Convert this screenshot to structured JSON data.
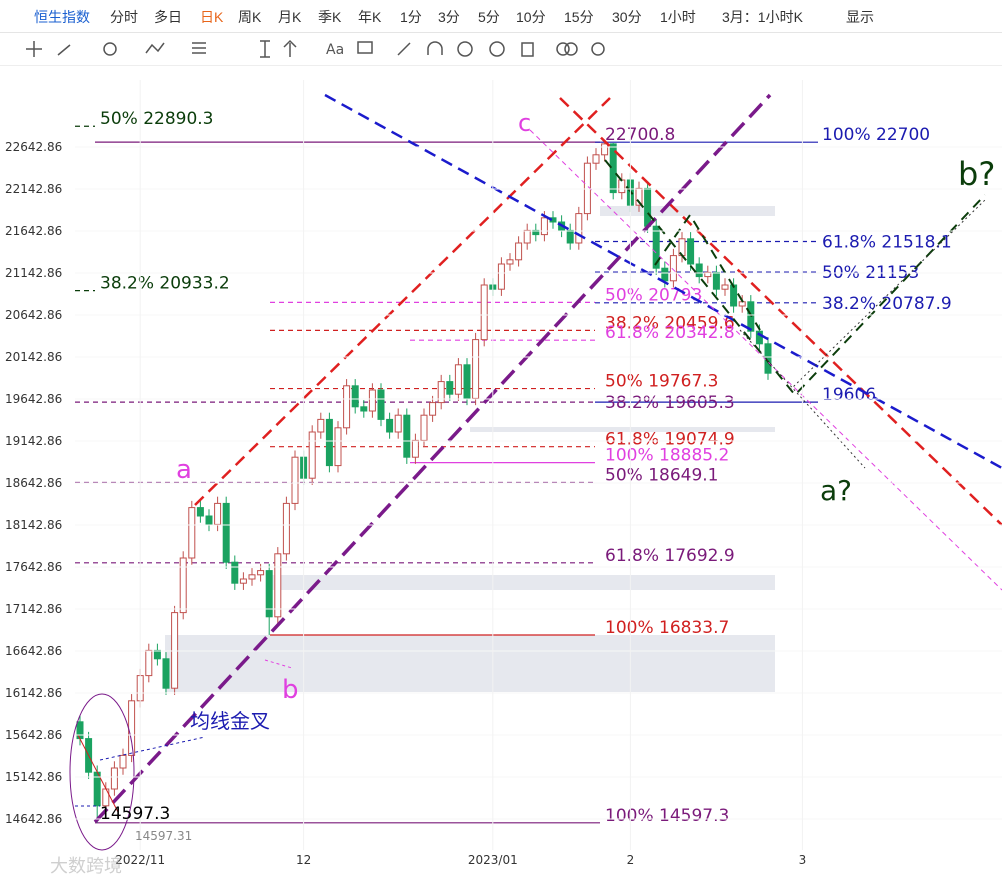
{
  "toolbar": {
    "items": [
      {
        "label": "恒生指数",
        "active": false
      },
      {
        "label": "分时",
        "active": false
      },
      {
        "label": "多日",
        "active": false
      },
      {
        "label": "日K",
        "active": true
      },
      {
        "label": "周K",
        "active": false
      },
      {
        "label": "月K",
        "active": false
      },
      {
        "label": "季K",
        "active": false
      },
      {
        "label": "年K",
        "active": false
      },
      {
        "label": "1分",
        "active": false
      },
      {
        "label": "3分",
        "active": false
      },
      {
        "label": "5分",
        "active": false
      },
      {
        "label": "10分",
        "active": false
      },
      {
        "label": "15分",
        "active": false
      },
      {
        "label": "30分",
        "active": false
      },
      {
        "label": "1小时",
        "active": false
      },
      {
        "label": "3月：1小时K",
        "active": false
      },
      {
        "label": "显示",
        "active": false
      }
    ]
  },
  "chart_data": {
    "type": "candlestick",
    "categories": [
      null,
      null,
      null,
      null,
      null,
      null,
      null,
      "2022/11",
      null,
      null,
      null,
      null,
      null,
      null,
      null,
      null,
      null,
      null,
      null,
      null,
      null,
      null,
      null,
      null,
      null,
      null,
      "12",
      null,
      null,
      null,
      null,
      null,
      null,
      null,
      null,
      null,
      null,
      null,
      null,
      null,
      null,
      null,
      null,
      null,
      null,
      null,
      null,
      null,
      "2023/01",
      null,
      null,
      null,
      null,
      null,
      null,
      null,
      null,
      null,
      null,
      null,
      null,
      null,
      null,
      null,
      "2",
      null,
      null,
      null,
      null,
      null,
      null,
      null,
      null,
      null,
      null,
      null,
      null,
      null,
      null,
      null,
      null,
      null,
      null,
      null,
      "3"
    ],
    "open": [
      15800,
      15600,
      15200,
      14800,
      15000,
      15250,
      15400,
      16050,
      16350,
      16650,
      16550,
      16200,
      17100,
      17750,
      18350,
      18250,
      18150,
      18400,
      17700,
      17450,
      17500,
      17550,
      17600,
      17050,
      17800,
      18400,
      18950,
      18700,
      19250,
      19400,
      18850,
      19300,
      19800,
      19550,
      19500,
      19750,
      19400,
      19250,
      19450,
      18950,
      19150,
      19450,
      19600,
      19850,
      19700,
      20050,
      19650,
      20350,
      21000,
      20950,
      21250,
      21300,
      21500,
      21650,
      21600,
      21800,
      21750,
      21650,
      21500,
      21850,
      22450,
      22550,
      22680,
      22100,
      22250,
      21950,
      22150,
      21700,
      21200,
      21050,
      21350,
      21550,
      21250,
      21100,
      21150,
      20950,
      21000,
      20750,
      20800,
      20450,
      20300,
      null,
      null,
      null,
      null
    ],
    "high": [
      15880,
      15680,
      15280,
      15080,
      15330,
      15480,
      16130,
      16430,
      16730,
      16730,
      16630,
      17180,
      17830,
      18430,
      18430,
      18330,
      18480,
      18480,
      17780,
      17580,
      17630,
      17680,
      17680,
      17880,
      18480,
      19030,
      19030,
      19330,
      19480,
      19480,
      19380,
      19880,
      19880,
      19630,
      19830,
      19830,
      19480,
      19530,
      19530,
      19230,
      19530,
      19680,
      19930,
      19930,
      20130,
      20130,
      20430,
      21080,
      21080,
      21330,
      21380,
      21580,
      21730,
      21730,
      21880,
      21880,
      21830,
      21730,
      21930,
      22530,
      22630,
      22701,
      22690,
      22330,
      22330,
      22230,
      22230,
      21780,
      21280,
      21430,
      21630,
      21630,
      21330,
      21230,
      21230,
      21080,
      21080,
      20880,
      20880,
      20530,
      20380,
      null,
      null,
      null,
      null
    ],
    "low": [
      15520,
      15120,
      14597,
      14720,
      14920,
      15170,
      15320,
      15970,
      16270,
      16470,
      16120,
      16120,
      17020,
      17670,
      18170,
      18070,
      18070,
      17620,
      17370,
      17370,
      17420,
      17470,
      16834,
      16970,
      17720,
      18320,
      18620,
      18620,
      19170,
      18770,
      18770,
      19220,
      19470,
      19420,
      19420,
      19320,
      19170,
      19170,
      18870,
      18870,
      19070,
      19370,
      19520,
      19620,
      19620,
      19570,
      19570,
      20270,
      20870,
      20870,
      21170,
      21220,
      21420,
      21520,
      21520,
      21670,
      21570,
      21420,
      21420,
      21770,
      22370,
      22470,
      22020,
      22020,
      21870,
      21870,
      21620,
      21120,
      20970,
      20970,
      21270,
      21170,
      21020,
      21020,
      20870,
      20870,
      20670,
      20670,
      20370,
      20220,
      19870,
      null,
      null,
      null,
      null
    ],
    "close": [
      15600,
      15200,
      14800,
      15000,
      15250,
      15400,
      16050,
      16350,
      16650,
      16550,
      16200,
      17100,
      17750,
      18350,
      18250,
      18150,
      18400,
      17700,
      17450,
      17500,
      17550,
      17600,
      17050,
      17800,
      18400,
      18950,
      18700,
      19250,
      19400,
      18850,
      19300,
      19800,
      19550,
      19500,
      19750,
      19400,
      19250,
      19450,
      18950,
      19150,
      19450,
      19600,
      19850,
      19700,
      20050,
      19650,
      20350,
      21000,
      20950,
      21250,
      21300,
      21500,
      21650,
      21600,
      21800,
      21750,
      21650,
      21500,
      21850,
      22450,
      22550,
      22680,
      22100,
      22250,
      21950,
      22150,
      21700,
      21200,
      21050,
      21350,
      21550,
      21250,
      21100,
      21150,
      20950,
      21000,
      20750,
      20800,
      20450,
      20300,
      19950,
      null,
      null,
      null,
      null
    ],
    "up_color": "#c0504d",
    "down_color": "#1aa260",
    "ylim": [
      14273.8,
      23440.5
    ],
    "yticks": [
      14642.86,
      15142.86,
      15642.86,
      16142.86,
      16642.86,
      17142.86,
      17642.86,
      18142.86,
      18642.86,
      19142.86,
      19642.86,
      20142.86,
      20642.86,
      21142.86,
      21642.86,
      22142.86,
      22642.86
    ],
    "grid": true,
    "levels": [
      {
        "label": "50% 22890.3",
        "value": 22890.3,
        "color": "#0b3d0b",
        "style": "dashed"
      },
      {
        "label": "38.2% 20933.2",
        "value": 20933.2,
        "color": "#0b3d0b",
        "style": "dashed"
      },
      {
        "label": "22700.8",
        "value": 22700.8,
        "color": "#7a1a7a",
        "style": "solid"
      },
      {
        "label": "100% 22700",
        "value": 22700,
        "color": "#1b1bb0",
        "style": "solid"
      },
      {
        "label": "61.8% 21518.1",
        "value": 21518.1,
        "color": "#1b1bb0",
        "style": "dashed"
      },
      {
        "label": "50% 21153",
        "value": 21153,
        "color": "#1b1bb0",
        "style": "dashed"
      },
      {
        "label": "38.2% 20787.9",
        "value": 20787.9,
        "color": "#1b1bb0",
        "style": "dashed"
      },
      {
        "label": "19606",
        "value": 19606,
        "color": "#1b1bb0",
        "style": "solid"
      },
      {
        "label": "50% 20793",
        "value": 20793,
        "color": "#e040e0",
        "style": "dashed"
      },
      {
        "label": "38.2% 20459.6",
        "value": 20459.6,
        "color": "#d02020",
        "style": "dashed"
      },
      {
        "label": "61.8% 20342.8",
        "value": 20342.8,
        "color": "#e040e0",
        "style": "dashed"
      },
      {
        "label": "50% 19767.3",
        "value": 19767.3,
        "color": "#d02020",
        "style": "dashed"
      },
      {
        "label": "38.2% 19605.3",
        "value": 19605.3,
        "color": "#7a1a7a",
        "style": "dashed"
      },
      {
        "label": "61.8% 19074.9",
        "value": 19074.9,
        "color": "#d02020",
        "style": "dashed"
      },
      {
        "label": "100% 18885.2",
        "value": 18885.2,
        "color": "#e040e0",
        "style": "solid"
      },
      {
        "label": "50% 18649.1",
        "value": 18649.1,
        "color": "#7a1a7a",
        "style": "dashed"
      },
      {
        "label": "61.8% 17692.9",
        "value": 17692.9,
        "color": "#7a1a7a",
        "style": "dashed"
      },
      {
        "label": "100% 16833.7",
        "value": 16833.7,
        "color": "#d02020",
        "style": "solid"
      },
      {
        "label": "100% 14597.3",
        "value": 14597.3,
        "color": "#7a1a7a",
        "style": "solid"
      }
    ],
    "annotations": {
      "low_label": "14597.3",
      "low_exact": "14597.31",
      "wave_a": "a",
      "wave_b": "b",
      "wave_c": "c",
      "next_a": "a?",
      "next_b": "b?",
      "golden_cross": "均线金叉"
    }
  },
  "watermark": "大数跨境"
}
